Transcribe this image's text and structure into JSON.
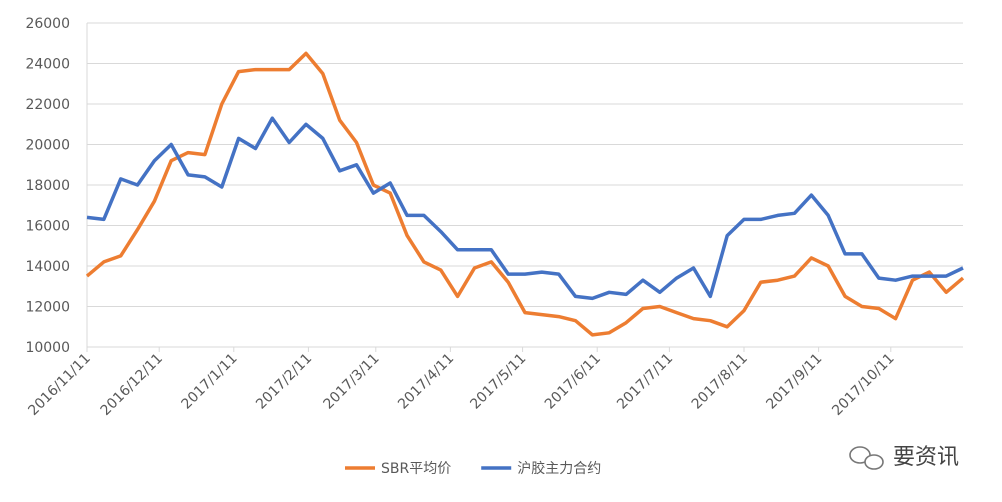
{
  "chart_data": {
    "type": "line",
    "x": [
      "2016/11/11",
      "2016/11/18",
      "2016/11/25",
      "2016/12/2",
      "2016/12/9",
      "2016/12/16",
      "2016/12/23",
      "2016/12/30",
      "2017/1/6",
      "2017/1/13",
      "2017/1/20",
      "2017/1/27",
      "2017/2/3",
      "2017/2/10",
      "2017/2/17",
      "2017/2/24",
      "2017/3/3",
      "2017/3/10",
      "2017/3/17",
      "2017/3/24",
      "2017/3/31",
      "2017/4/7",
      "2017/4/14",
      "2017/4/21",
      "2017/4/28",
      "2017/5/5",
      "2017/5/12",
      "2017/5/19",
      "2017/5/26",
      "2017/6/2",
      "2017/6/9",
      "2017/6/16",
      "2017/6/23",
      "2017/6/30",
      "2017/7/7",
      "2017/7/14",
      "2017/7/21",
      "2017/7/28",
      "2017/8/4",
      "2017/8/11",
      "2017/8/18",
      "2017/8/25",
      "2017/9/1",
      "2017/9/8",
      "2017/9/15",
      "2017/9/22",
      "2017/9/29",
      "2017/10/6",
      "2017/10/13",
      "2017/10/20",
      "2017/10/27",
      "2017/11/3",
      "2017/11/10"
    ],
    "series": [
      {
        "name": "SBR平均价",
        "color": "#ED7D31",
        "values": [
          13500,
          14200,
          14500,
          15800,
          17200,
          19200,
          19600,
          19500,
          22000,
          23600,
          23700,
          23700,
          23700,
          24500,
          23500,
          21200,
          20100,
          18000,
          17600,
          15500,
          14200,
          13800,
          12500,
          13900,
          14200,
          13200,
          11700,
          11600,
          11500,
          11300,
          10600,
          10700,
          11200,
          11900,
          12000,
          11700,
          11400,
          11300,
          11000,
          11800,
          13200,
          13300,
          13500,
          14400,
          14000,
          12500,
          12000,
          11900,
          11400,
          13300,
          13700,
          12700,
          13400
        ]
      },
      {
        "name": "沪胶主力合约",
        "color": "#4472C4",
        "values": [
          16400,
          16300,
          18300,
          18000,
          19200,
          20000,
          18500,
          18400,
          17900,
          20300,
          19800,
          21300,
          20100,
          21000,
          20300,
          18700,
          19000,
          17600,
          18100,
          16500,
          16500,
          15700,
          14800,
          14800,
          14800,
          13600,
          13600,
          13700,
          13600,
          12500,
          12400,
          12700,
          12600,
          13300,
          12700,
          13400,
          13900,
          12500,
          15500,
          16300,
          16300,
          16500,
          16600,
          17500,
          16500,
          14600,
          14600,
          13400,
          13300,
          13500,
          13500,
          13500,
          13900
        ]
      }
    ],
    "xlim": [
      "2016/11/11",
      "2017/11/10"
    ],
    "xticks": [
      "2016/11/11",
      "2016/12/11",
      "2017/1/11",
      "2017/2/11",
      "2017/3/11",
      "2017/4/11",
      "2017/5/11",
      "2017/6/11",
      "2017/7/11",
      "2017/8/11",
      "2017/9/11",
      "2017/10/11"
    ],
    "ylim": [
      10000,
      26000
    ],
    "yticks": [
      10000,
      12000,
      14000,
      16000,
      18000,
      20000,
      22000,
      24000,
      26000
    ],
    "grid": true,
    "legend": "bottom"
  },
  "watermark": "要资讯"
}
